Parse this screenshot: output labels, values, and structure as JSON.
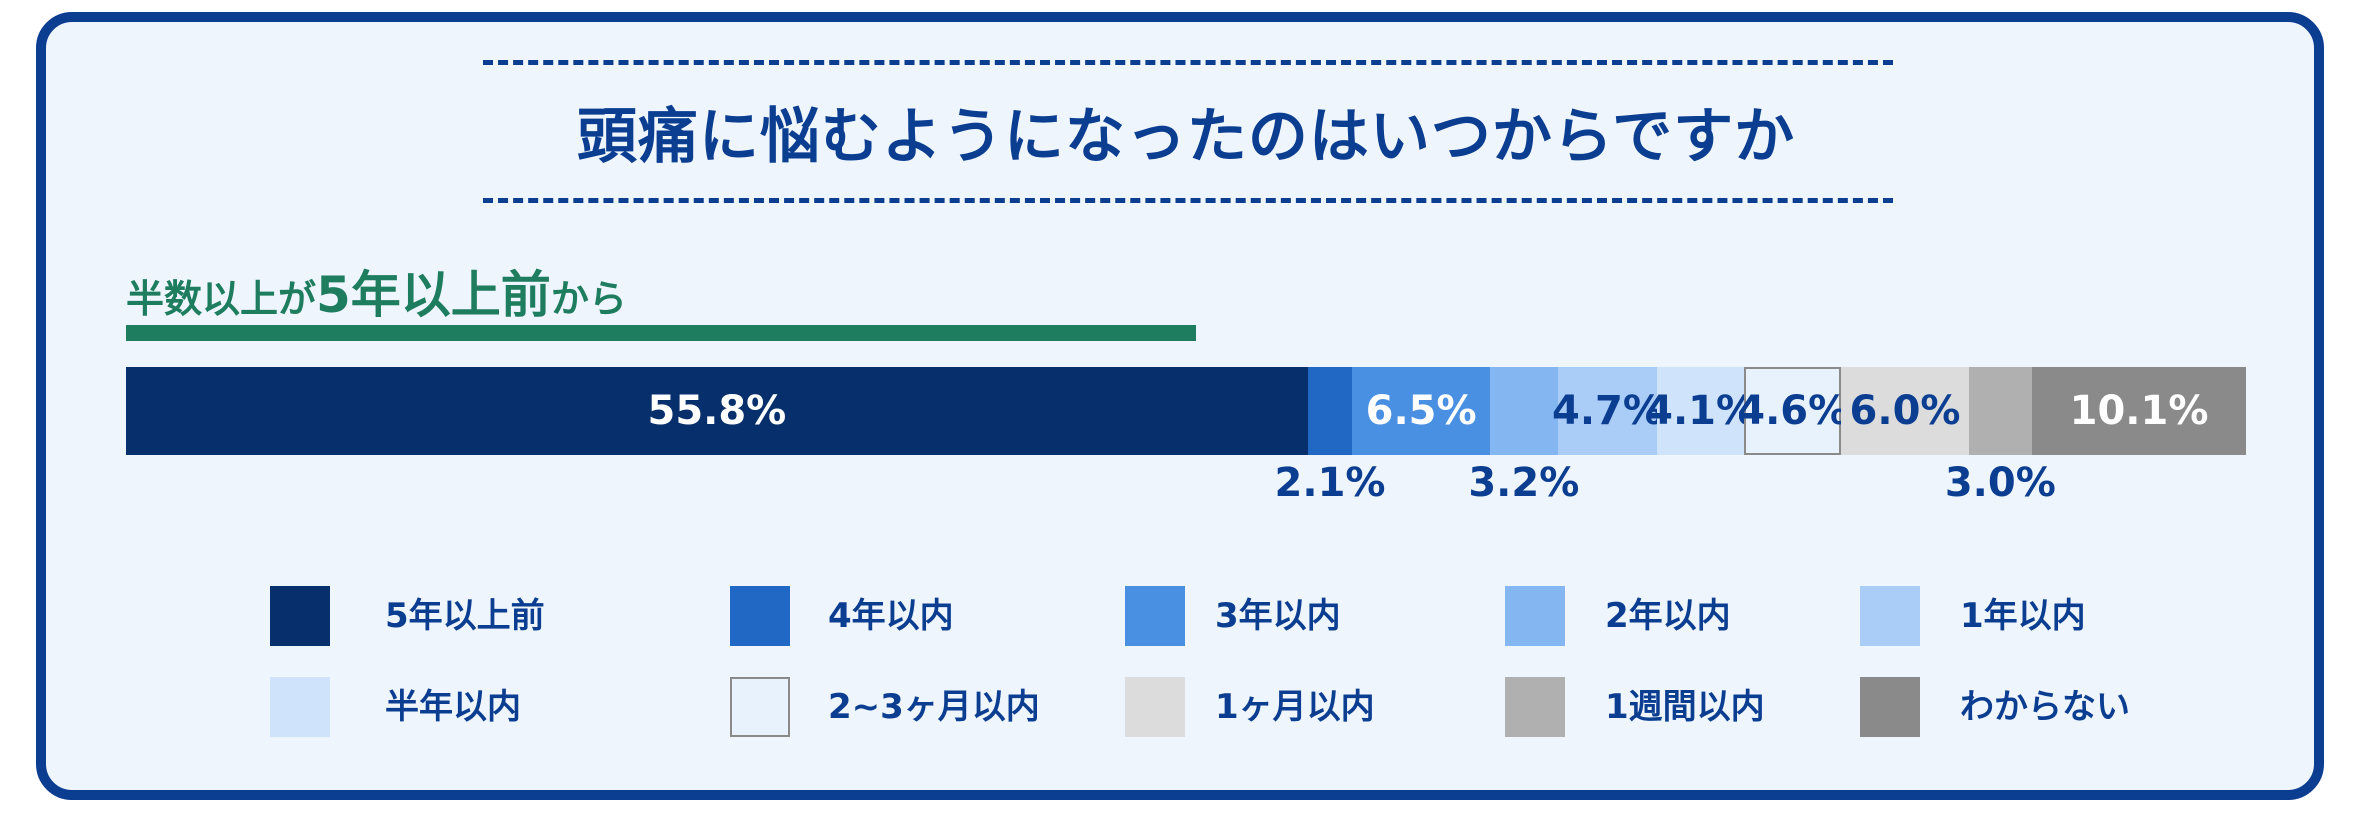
{
  "title": "頭痛に悩むようになったのはいつからですか",
  "subtitle": {
    "prefix": "半数以上が",
    "highlight": "5年以上前",
    "suffix": "から"
  },
  "chart_data": {
    "type": "bar",
    "orientation": "horizontal-stacked-100",
    "title": "頭痛に悩むようになったのはいつからですか",
    "xlabel": "",
    "ylabel": "",
    "xlim": [
      0,
      100
    ],
    "categories": [
      "5年以上前",
      "4年以内",
      "3年以内",
      "2年以内",
      "1年以内",
      "半年以内",
      "2~3ヶ月以内",
      "1ヶ月以内",
      "1週間以内",
      "わからない"
    ],
    "values": [
      55.8,
      2.1,
      6.5,
      3.2,
      4.7,
      4.1,
      4.6,
      6.0,
      3.0,
      10.1
    ],
    "labels": [
      "55.8%",
      "2.1%",
      "6.5%",
      "3.2%",
      "4.7%",
      "4.1%",
      "4.6%",
      "6.0%",
      "3.0%",
      "10.1%"
    ],
    "label_placement": [
      "inside",
      "below",
      "inside",
      "below",
      "inside",
      "inside",
      "inside",
      "inside",
      "below",
      "inside"
    ],
    "colors": [
      "#062f6b",
      "#2168c4",
      "#4a90e2",
      "#84b6f2",
      "#aacdf7",
      "#cfe3fb",
      "#e8f2fd",
      "#dcdcdc",
      "#b0b0b0",
      "#8a8a8a"
    ],
    "label_colors": [
      "#ffffff",
      "#0b3d91",
      "#ffffff",
      "#0b3d91",
      "#0b3d91",
      "#0b3d91",
      "#0b3d91",
      "#0b3d91",
      "#0b3d91",
      "#ffffff"
    ],
    "legend_position": "bottom",
    "grid": false
  }
}
